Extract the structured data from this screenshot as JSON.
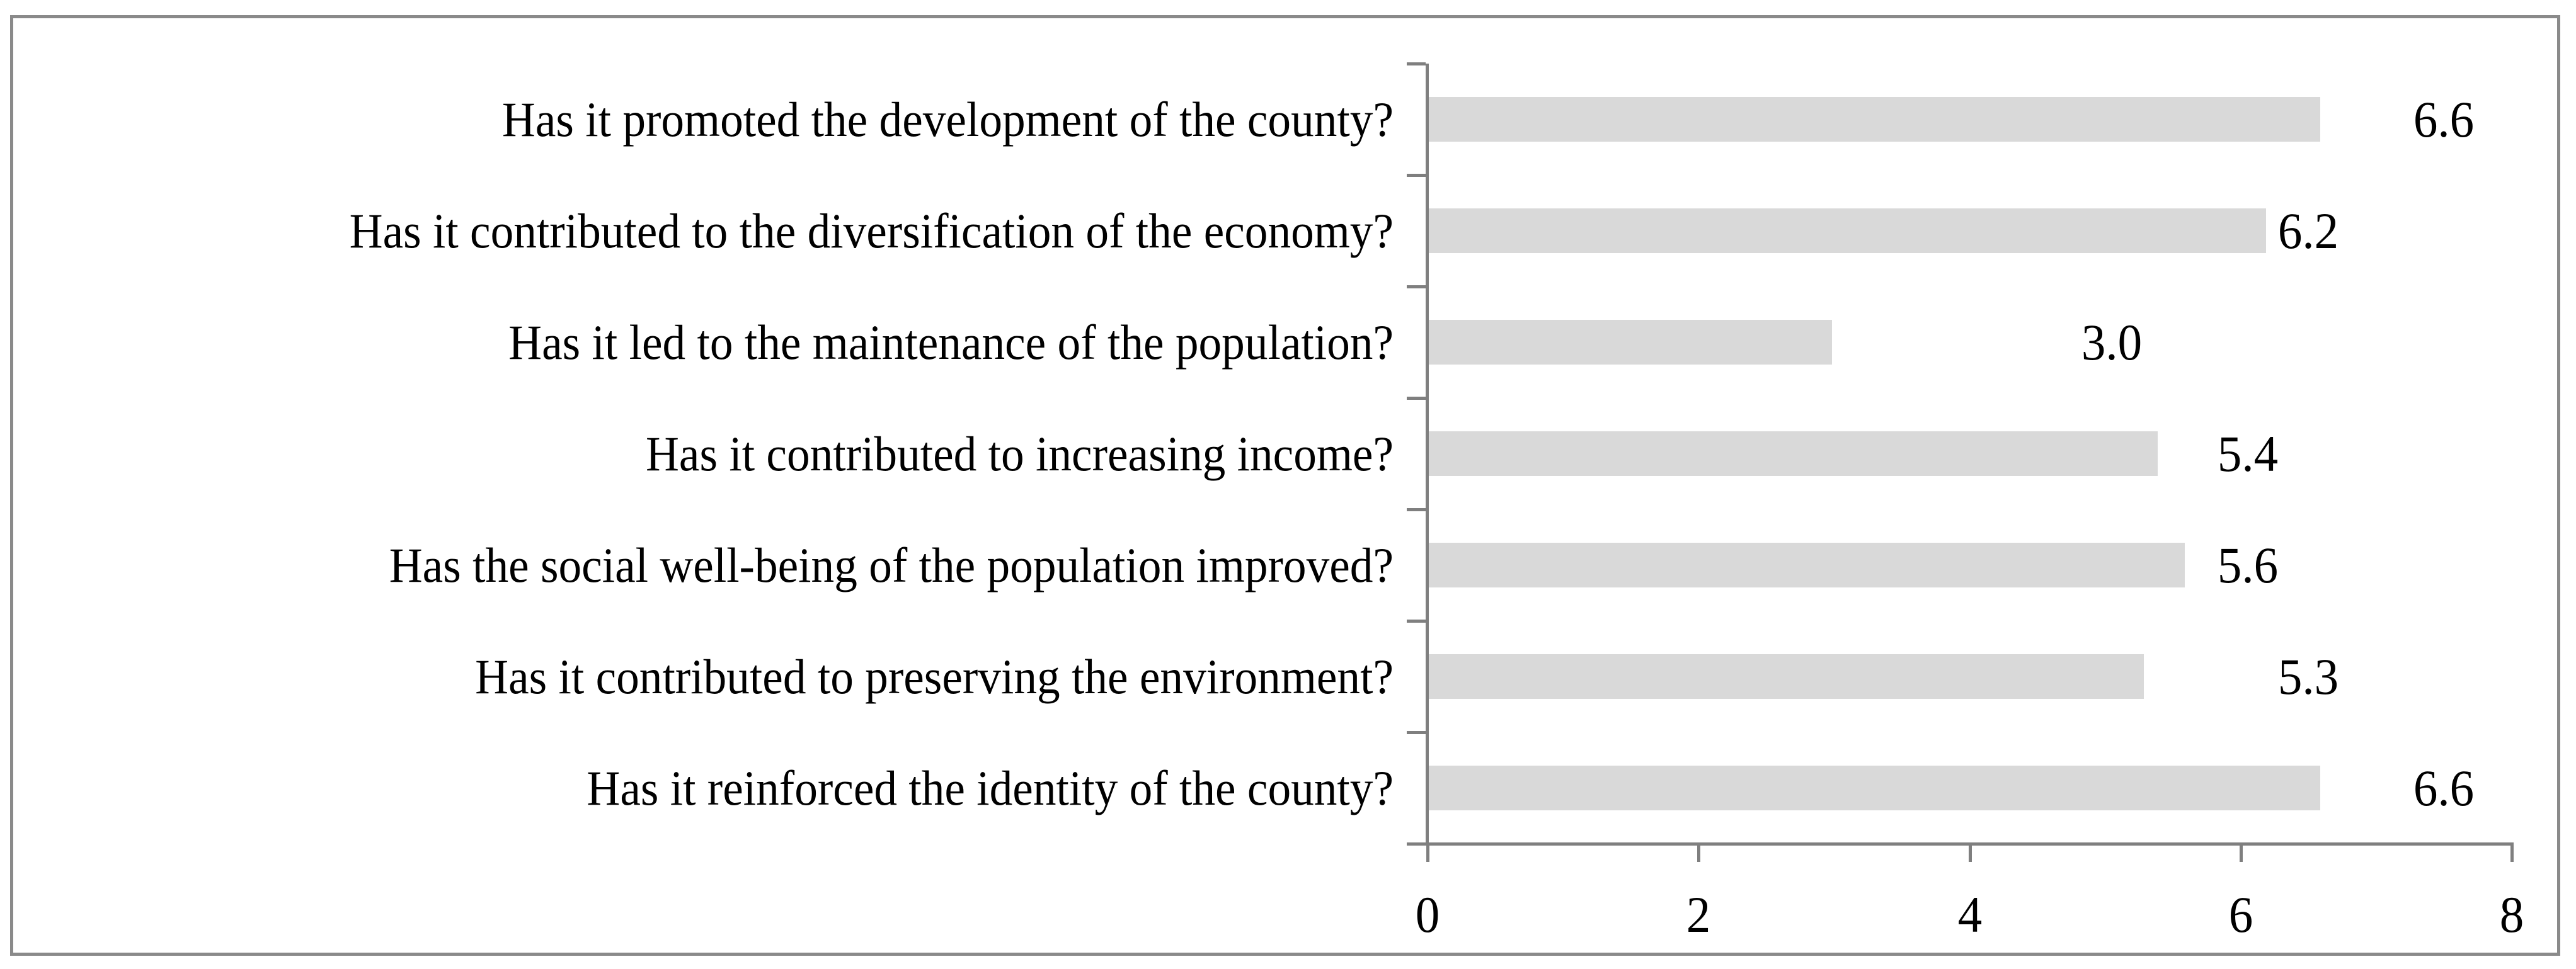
{
  "figure": {
    "background": "#ffffff",
    "border_color": "#8a8a8a"
  },
  "chart_data": {
    "type": "bar",
    "orientation": "horizontal",
    "title": "",
    "xlabel": "",
    "ylabel": "",
    "grid": "off",
    "legend": "none",
    "xlim": [
      0,
      8
    ],
    "x_ticks": [
      "0",
      "2",
      "4",
      "6",
      "8"
    ],
    "categories": [
      "Has it promoted the development of the county?",
      "Has it contributed to the diversification of the economy?",
      "Has it led to the maintenance of the population?",
      "Has it contributed to increasing income?",
      "Has the social well-being of the population improved?",
      "Has it contributed to preserving the environment?",
      "Has it reinforced the identity of the county?"
    ],
    "values": [
      6.6,
      6.2,
      3.0,
      5.4,
      5.6,
      5.3,
      6.6
    ],
    "value_labels": [
      "6.6",
      "6.2",
      "3.0",
      "5.4",
      "5.6",
      "5.3",
      "6.6"
    ],
    "value_label_axis_positions": [
      7.5,
      6.5,
      5.05,
      6.05,
      6.05,
      6.5,
      7.5
    ],
    "bar_color": "#d9d9d9",
    "axis_color": "#7f7f7f",
    "text_color": "#000000"
  }
}
